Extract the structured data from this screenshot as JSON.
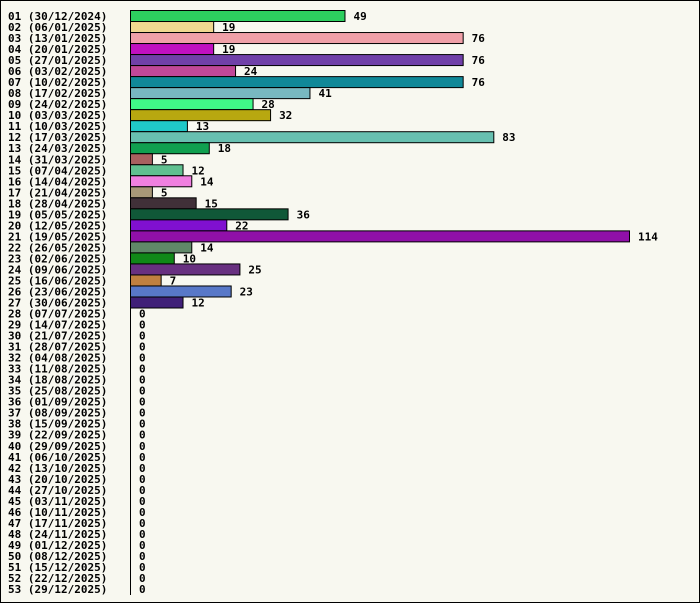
{
  "chart_data": {
    "type": "barh",
    "categories": [
      "01 (30/12/2024)",
      "02 (06/01/2025)",
      "03 (13/01/2025)",
      "04 (20/01/2025)",
      "05 (27/01/2025)",
      "06 (03/02/2025)",
      "07 (10/02/2025)",
      "08 (17/02/2025)",
      "09 (24/02/2025)",
      "10 (03/03/2025)",
      "11 (10/03/2025)",
      "12 (17/03/2025)",
      "13 (24/03/2025)",
      "14 (31/03/2025)",
      "15 (07/04/2025)",
      "16 (14/04/2025)",
      "17 (21/04/2025)",
      "18 (28/04/2025)",
      "19 (05/05/2025)",
      "20 (12/05/2025)",
      "21 (19/05/2025)",
      "22 (26/05/2025)",
      "23 (02/06/2025)",
      "24 (09/06/2025)",
      "25 (16/06/2025)",
      "26 (23/06/2025)",
      "27 (30/06/2025)",
      "28 (07/07/2025)",
      "29 (14/07/2025)",
      "30 (21/07/2025)",
      "31 (28/07/2025)",
      "32 (04/08/2025)",
      "33 (11/08/2025)",
      "34 (18/08/2025)",
      "35 (25/08/2025)",
      "36 (01/09/2025)",
      "37 (08/09/2025)",
      "38 (15/09/2025)",
      "39 (22/09/2025)",
      "40 (29/09/2025)",
      "41 (06/10/2025)",
      "42 (13/10/2025)",
      "43 (20/10/2025)",
      "44 (27/10/2025)",
      "45 (03/11/2025)",
      "46 (10/11/2025)",
      "47 (17/11/2025)",
      "48 (24/11/2025)",
      "49 (01/12/2025)",
      "50 (08/12/2025)",
      "51 (15/12/2025)",
      "52 (22/12/2025)",
      "53 (29/12/2025)"
    ],
    "values": [
      49,
      19,
      76,
      19,
      76,
      24,
      76,
      41,
      28,
      32,
      13,
      83,
      18,
      5,
      12,
      14,
      5,
      15,
      36,
      22,
      114,
      14,
      10,
      25,
      7,
      23,
      12,
      0,
      0,
      0,
      0,
      0,
      0,
      0,
      0,
      0,
      0,
      0,
      0,
      0,
      0,
      0,
      0,
      0,
      0,
      0,
      0,
      0,
      0,
      0,
      0,
      0,
      0
    ],
    "colors": [
      "#2dcf5f",
      "#f0d890",
      "#f0a0a8",
      "#c010c0",
      "#7040a8",
      "#c04898",
      "#108898",
      "#78b8c0",
      "#40f888",
      "#b8a810",
      "#20c8c8",
      "#68c0b0",
      "#10a050",
      "#a86060",
      "#60c090",
      "#f080e0",
      "#a89878",
      "#403038",
      "#105838",
      "#8010d0",
      "#9010a8",
      "#608868",
      "#108818",
      "#683080",
      "#c08040",
      "#5878c8",
      "#402078",
      null,
      null,
      null,
      null,
      null,
      null,
      null,
      null,
      null,
      null,
      null,
      null,
      null,
      null,
      null,
      null,
      null,
      null,
      null,
      null,
      null,
      null,
      null,
      null,
      null,
      null
    ]
  }
}
